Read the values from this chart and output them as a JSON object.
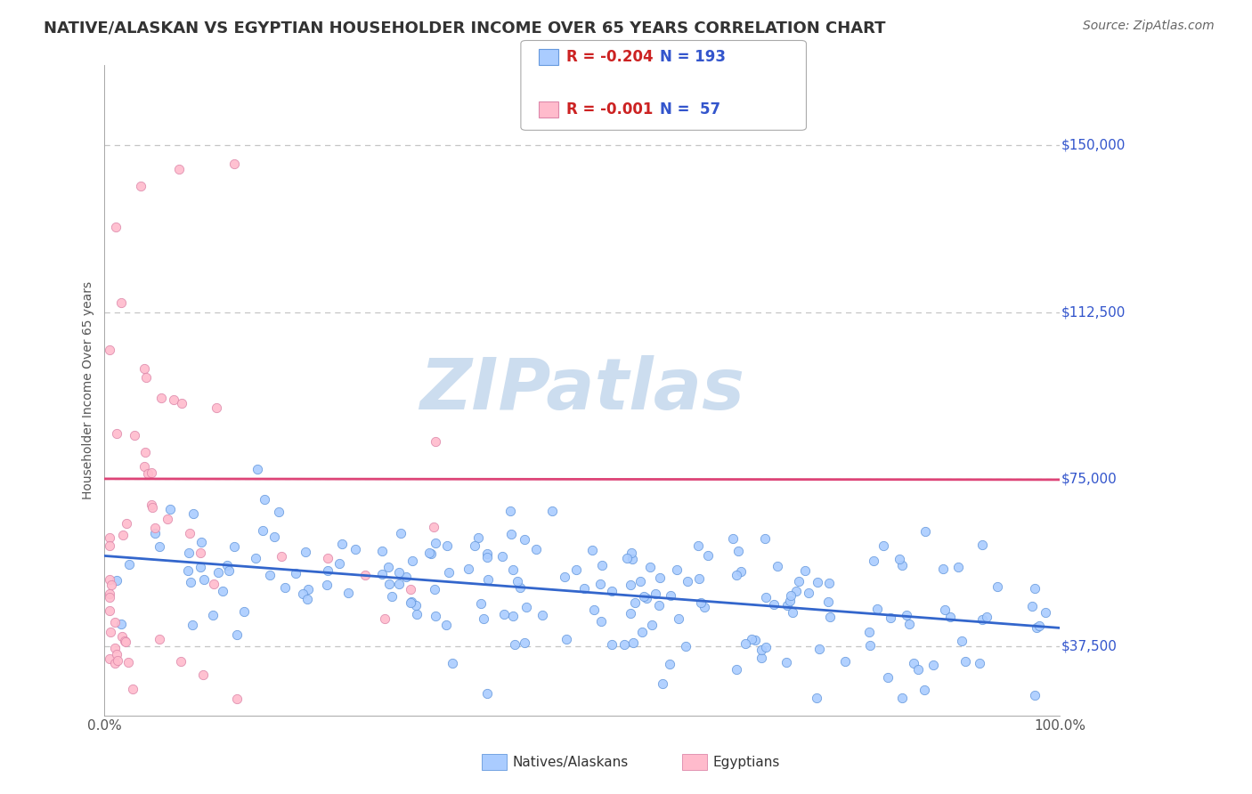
{
  "title": "NATIVE/ALASKAN VS EGYPTIAN HOUSEHOLDER INCOME OVER 65 YEARS CORRELATION CHART",
  "source": "Source: ZipAtlas.com",
  "ylabel": "Householder Income Over 65 years",
  "x_tick_labels": [
    "0.0%",
    "100.0%"
  ],
  "y_tick_labels": [
    "$37,500",
    "$75,000",
    "$112,500",
    "$150,000"
  ],
  "y_tick_values": [
    37500,
    75000,
    112500,
    150000
  ],
  "xlim": [
    0,
    1
  ],
  "ylim": [
    22000,
    168000
  ],
  "background_color": "#ffffff",
  "grid_color": "#bbbbbb",
  "title_color": "#333333",
  "title_fontsize": 13,
  "source_color": "#666666",
  "source_fontsize": 10,
  "ylabel_color": "#555555",
  "ylabel_fontsize": 10,
  "ytick_color": "#3355cc",
  "xtick_color": "#555555",
  "watermark_text": "ZIPatlas",
  "watermark_color": "#ccddef",
  "legend_r1_val": "-0.204",
  "legend_n1_val": "193",
  "legend_r2_val": "-0.001",
  "legend_n2_val": " 57",
  "series1_color": "#aaccff",
  "series1_edge": "#6699dd",
  "series2_color": "#ffbbcc",
  "series2_edge": "#dd88aa",
  "trendline1_color": "#3366cc",
  "trendline2_color": "#dd4477",
  "legend_box_color": "#aaaaaa",
  "legend_text_r_color": "#cc2222",
  "legend_text_n_color": "#3355cc"
}
